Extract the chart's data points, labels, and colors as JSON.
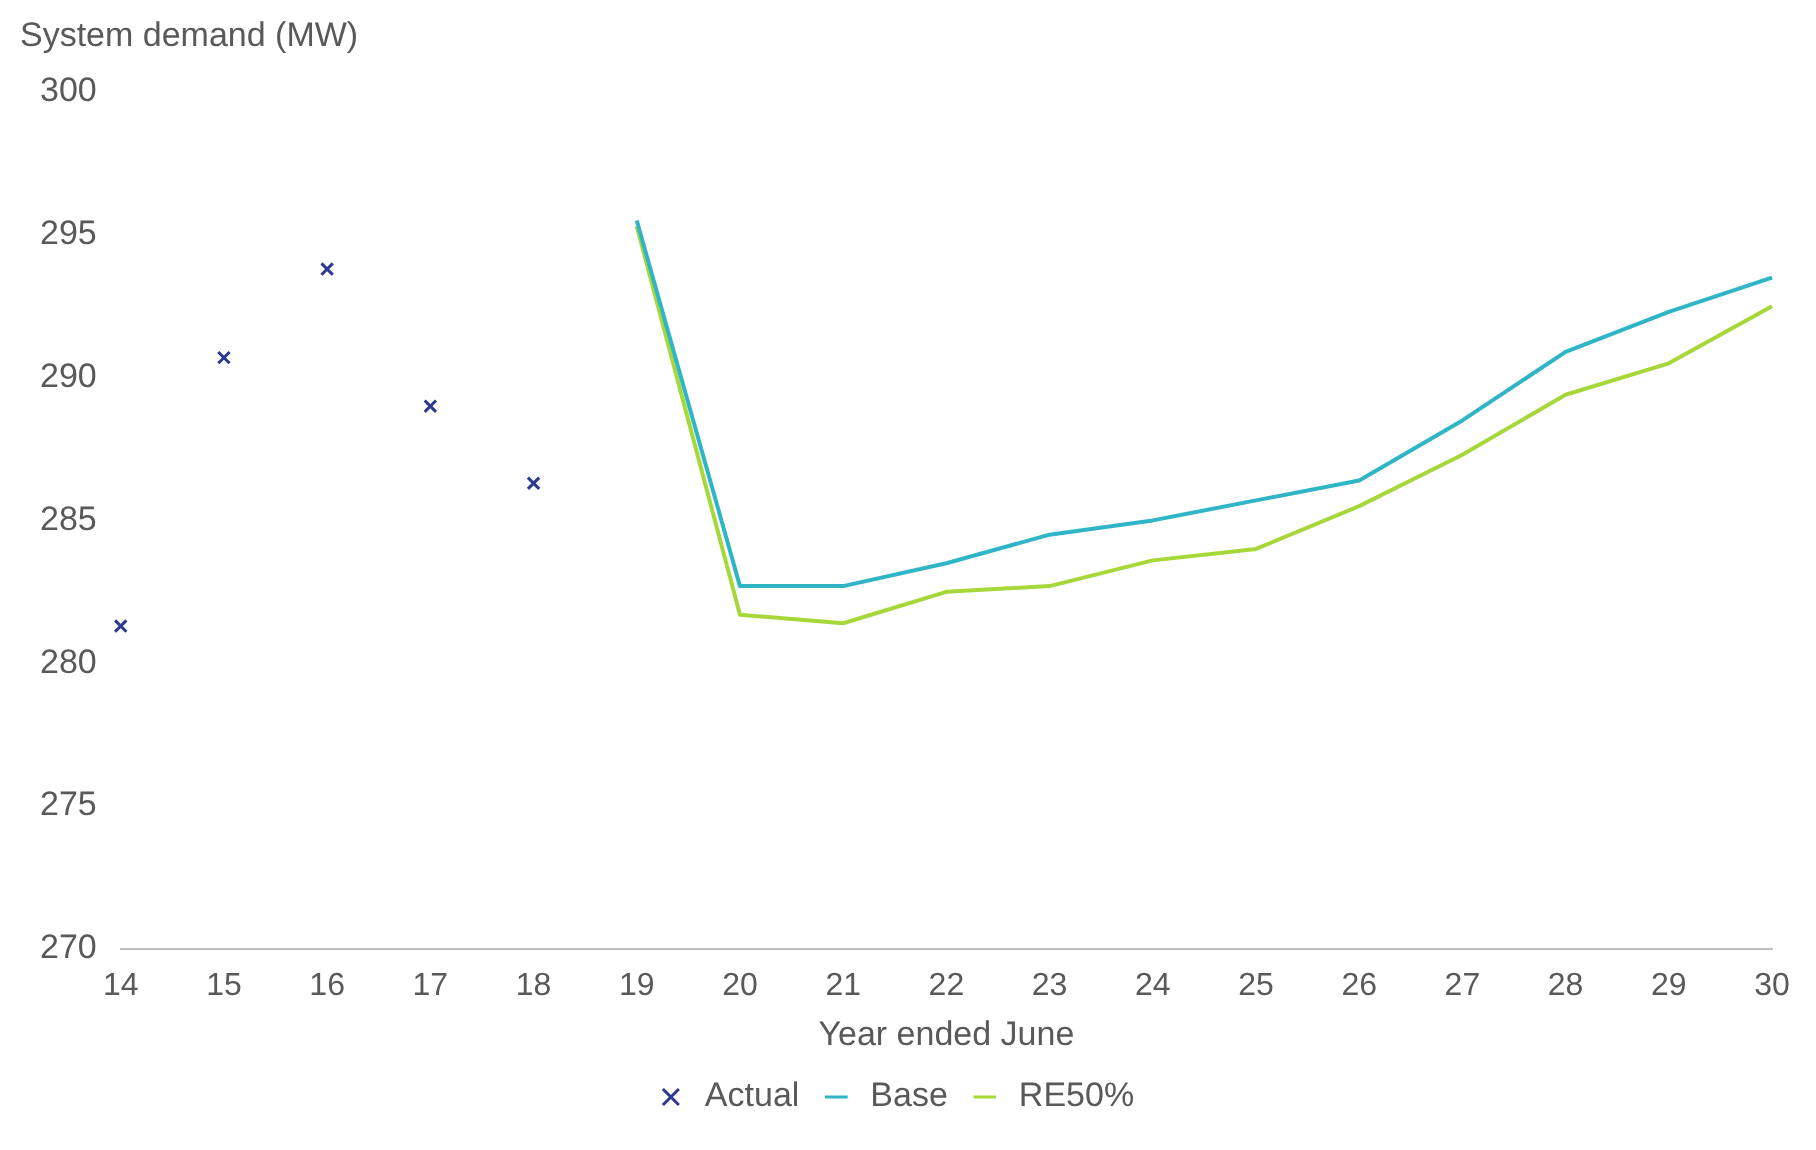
{
  "chart_data": {
    "type": "line",
    "ylabel": "System demand (MW)",
    "xlabel": "Year ended June",
    "categories": [
      "14",
      "15",
      "16",
      "17",
      "18",
      "19",
      "20",
      "21",
      "22",
      "23",
      "24",
      "25",
      "26",
      "27",
      "28",
      "29",
      "30"
    ],
    "series": [
      {
        "name": "Actual",
        "type": "scatter",
        "marker": "cross",
        "color": "#2b3990",
        "values": [
          281.3,
          290.7,
          293.8,
          289.0,
          286.3,
          null,
          null,
          null,
          null,
          null,
          null,
          null,
          null,
          null,
          null,
          null,
          null
        ]
      },
      {
        "name": "Base",
        "type": "line",
        "marker": "none",
        "color": "#2fb5c6",
        "values": [
          null,
          null,
          null,
          null,
          null,
          295.5,
          282.7,
          282.7,
          283.5,
          284.5,
          285.0,
          285.7,
          286.4,
          288.5,
          290.9,
          292.3,
          293.5
        ]
      },
      {
        "name": "RE50%",
        "type": "line",
        "marker": "none",
        "color": "#a6d83a",
        "values": [
          null,
          null,
          null,
          null,
          null,
          295.3,
          281.7,
          281.4,
          282.5,
          282.7,
          283.6,
          284.0,
          285.5,
          287.3,
          289.4,
          290.5,
          292.5
        ]
      }
    ],
    "ylim": [
      270,
      300
    ],
    "yticks": [
      270,
      275,
      280,
      285,
      290,
      295,
      300
    ],
    "grid": false,
    "legend": "bottom"
  }
}
